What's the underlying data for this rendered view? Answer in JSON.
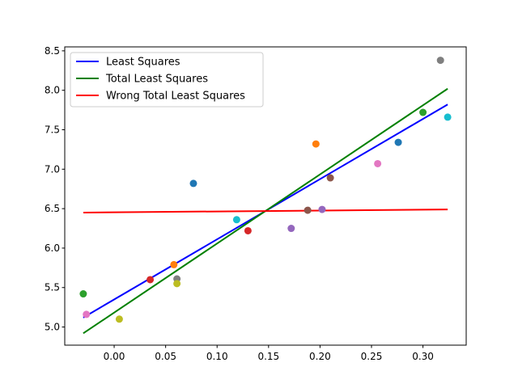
{
  "chart_data": {
    "type": "scatter",
    "title": "",
    "xlabel": "",
    "ylabel": "",
    "xlim": [
      -0.048,
      0.342
    ],
    "ylim": [
      4.77,
      8.55
    ],
    "grid": false,
    "legend_position": "top-left",
    "x_ticks": [
      "0.00",
      "0.05",
      "0.10",
      "0.15",
      "0.20",
      "0.25",
      "0.30"
    ],
    "x_tick_values": [
      0.0,
      0.05,
      0.1,
      0.15,
      0.2,
      0.25,
      0.3
    ],
    "y_ticks": [
      "5.0",
      "5.5",
      "6.0",
      "6.5",
      "7.0",
      "7.5",
      "8.0",
      "8.5"
    ],
    "y_tick_values": [
      5.0,
      5.5,
      6.0,
      6.5,
      7.0,
      7.5,
      8.0,
      8.5
    ],
    "points": [
      {
        "x": -0.03,
        "y": 5.42,
        "color": "#2ca02c"
      },
      {
        "x": -0.027,
        "y": 5.16,
        "color": "#e377c2"
      },
      {
        "x": 0.005,
        "y": 5.1,
        "color": "#bcbd22"
      },
      {
        "x": 0.035,
        "y": 5.6,
        "color": "#d62728"
      },
      {
        "x": 0.058,
        "y": 5.79,
        "color": "#ff7f0e"
      },
      {
        "x": 0.061,
        "y": 5.61,
        "color": "#7f7f7f"
      },
      {
        "x": 0.061,
        "y": 5.55,
        "color": "#bcbd22"
      },
      {
        "x": 0.077,
        "y": 6.82,
        "color": "#1f77b4"
      },
      {
        "x": 0.119,
        "y": 6.36,
        "color": "#17becf"
      },
      {
        "x": 0.13,
        "y": 6.22,
        "color": "#d62728"
      },
      {
        "x": 0.172,
        "y": 6.25,
        "color": "#9467bd"
      },
      {
        "x": 0.188,
        "y": 6.48,
        "color": "#8c564b"
      },
      {
        "x": 0.196,
        "y": 7.32,
        "color": "#ff7f0e"
      },
      {
        "x": 0.202,
        "y": 6.49,
        "color": "#9467bd"
      },
      {
        "x": 0.21,
        "y": 6.89,
        "color": "#8c564b"
      },
      {
        "x": 0.256,
        "y": 7.07,
        "color": "#e377c2"
      },
      {
        "x": 0.276,
        "y": 7.34,
        "color": "#1f77b4"
      },
      {
        "x": 0.3,
        "y": 7.72,
        "color": "#2ca02c"
      },
      {
        "x": 0.317,
        "y": 8.38,
        "color": "#7f7f7f"
      },
      {
        "x": 0.324,
        "y": 7.66,
        "color": "#17becf"
      }
    ],
    "series": [
      {
        "name": "Least Squares",
        "color": "#0000ff",
        "x": [
          -0.03,
          0.324
        ],
        "y": [
          5.12,
          7.82
        ]
      },
      {
        "name": "Total Least Squares",
        "color": "#008000",
        "x": [
          -0.03,
          0.324
        ],
        "y": [
          4.92,
          8.02
        ]
      },
      {
        "name": "Wrong Total Least Squares",
        "color": "#ff0000",
        "x": [
          -0.03,
          0.324
        ],
        "y": [
          6.45,
          6.49
        ]
      }
    ]
  }
}
